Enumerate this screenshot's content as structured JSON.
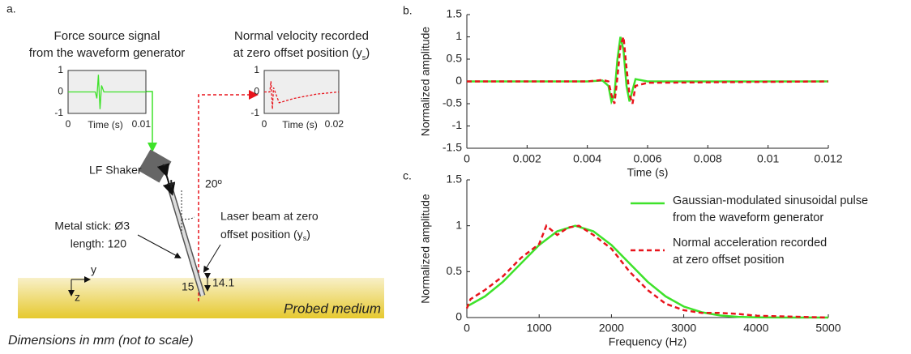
{
  "chart_data": [
    {
      "type": "line",
      "panel_label": "b.",
      "ylabel": "Normalized amplitude",
      "xlabel": "Time (s)",
      "xlim": [
        0,
        0.012
      ],
      "xticks": [
        0,
        0.002,
        0.004,
        0.006,
        0.008,
        0.01,
        0.012
      ],
      "ylim": [
        -1.5,
        1.5
      ],
      "yticks": [
        -1.5,
        -1,
        -0.5,
        0,
        0.5,
        1,
        1.5
      ],
      "series": [
        {
          "color": "#3ee22a",
          "dash": false,
          "x": [
            0,
            0.004,
            0.0045,
            0.0047,
            0.0048,
            0.0049,
            0.005,
            0.0051,
            0.0052,
            0.0053,
            0.0054,
            0.0055,
            0.0056,
            0.006,
            0.008,
            0.012
          ],
          "values": [
            0,
            0,
            0.02,
            -0.1,
            -0.45,
            -0.3,
            0.5,
            1,
            0.7,
            -0.1,
            -0.45,
            -0.2,
            0.05,
            0,
            0,
            0
          ]
        },
        {
          "color": "#e8141c",
          "dash": true,
          "x": [
            0,
            0.004,
            0.0045,
            0.0047,
            0.0048,
            0.0049,
            0.005,
            0.0051,
            0.0052,
            0.0053,
            0.0054,
            0.0055,
            0.0056,
            0.006,
            0.008,
            0.012
          ],
          "values": [
            0,
            0,
            0.03,
            0,
            -0.3,
            -0.5,
            0.1,
            0.8,
            1,
            0.3,
            -0.3,
            -0.5,
            -0.1,
            -0.03,
            -0.02,
            0
          ]
        }
      ]
    },
    {
      "type": "line",
      "panel_label": "c.",
      "ylabel": "Normalized amplitude",
      "xlabel": "Frequency (Hz)",
      "xlim": [
        0,
        5000
      ],
      "xticks": [
        0,
        1000,
        2000,
        3000,
        4000,
        5000
      ],
      "ylim": [
        0,
        1.5
      ],
      "yticks": [
        0,
        0.5,
        1,
        1.5
      ],
      "legend": "upper right",
      "series": [
        {
          "name": "Gaussian-modulated sinusoidal pulse from the waveform generator",
          "color": "#3ee22a",
          "dash": false,
          "x": [
            0,
            250,
            500,
            750,
            1000,
            1250,
            1500,
            1750,
            2000,
            2250,
            2500,
            2750,
            3000,
            3250,
            3500,
            3750,
            4000,
            4500,
            5000
          ],
          "values": [
            0.12,
            0.23,
            0.39,
            0.59,
            0.79,
            0.94,
            1,
            0.94,
            0.79,
            0.59,
            0.39,
            0.23,
            0.12,
            0.057,
            0.023,
            0.008,
            0.003,
            0,
            0
          ]
        },
        {
          "name": "Normal acceleration recorded at zero offset position",
          "color": "#e8141c",
          "dash": true,
          "x": [
            0,
            50,
            250,
            500,
            750,
            1000,
            1100,
            1250,
            1400,
            1550,
            1750,
            2000,
            2250,
            2500,
            2750,
            3000,
            3250,
            3500,
            3750,
            4000,
            4500,
            5000
          ],
          "values": [
            0.1,
            0.2,
            0.3,
            0.45,
            0.65,
            0.8,
            1,
            0.9,
            0.98,
            1,
            0.9,
            0.75,
            0.5,
            0.3,
            0.15,
            0.08,
            0.05,
            0.05,
            0.04,
            0.02,
            0.01,
            0
          ]
        }
      ]
    },
    {
      "type": "line",
      "inset": true,
      "title": [
        "Force source signal",
        "from the waveform generator"
      ],
      "xlabel": "Time (s)",
      "xlim": [
        0,
        0.01
      ],
      "xticks": [
        0,
        0.01
      ],
      "ylim": [
        -1,
        1
      ],
      "yticks": [
        -1,
        0,
        1
      ],
      "series": [
        {
          "color": "#3ee22a",
          "dash": false,
          "x": [
            0,
            0.0035,
            0.0037,
            0.0039,
            0.0041,
            0.0043,
            0.0046,
            0.01
          ],
          "values": [
            0,
            0,
            -0.3,
            0.8,
            -0.8,
            0.3,
            0,
            0
          ]
        }
      ]
    },
    {
      "type": "line",
      "inset": true,
      "title": [
        "Normal velocity recorded",
        "at zero offset position (y"
      ],
      "title_subscript": "s",
      "title_end": ")",
      "xlabel": "Time (s)",
      "xlim": [
        0,
        0.02
      ],
      "xticks": [
        0,
        0.02
      ],
      "ylim": [
        -1,
        1
      ],
      "yticks": [
        -1,
        0,
        1
      ],
      "series": [
        {
          "color": "#e8141c",
          "dash": true,
          "x": [
            0,
            0.0015,
            0.0018,
            0.0022,
            0.0025,
            0.004,
            0.008,
            0.014,
            0.02
          ],
          "values": [
            0,
            0,
            0.5,
            -0.8,
            0.2,
            -0.5,
            -0.3,
            -0.1,
            0
          ]
        }
      ]
    }
  ],
  "diagram": {
    "panel_label": "a.",
    "shaker": "LF Shaker",
    "minus": "-",
    "plus": "+",
    "angle": "20º",
    "stick": [
      "Metal stick: Ø3",
      "length: 120"
    ],
    "laser": [
      "Laser beam at zero",
      "offset position (y"
    ],
    "laser_subscript": "s",
    "laser_end": ")",
    "dim_15": "15",
    "dim_14": "14.1",
    "axis_y": "y",
    "axis_z": "z",
    "medium": "Probed medium",
    "footnote": "Dimensions in mm (not to scale)"
  }
}
